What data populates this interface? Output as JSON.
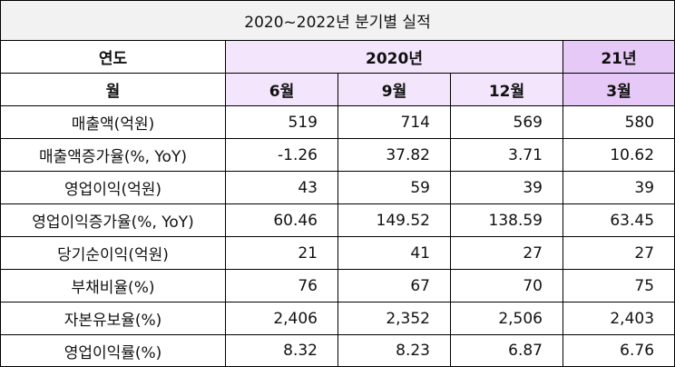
{
  "title": "2020~2022년 분기별 실적",
  "header": {
    "year_label": "연도",
    "month_label": "월",
    "year_2020": "2020년",
    "year_21": "21년",
    "months": [
      "6월",
      "9월",
      "12월",
      "3월"
    ]
  },
  "rows": [
    {
      "label": "매출액(억원)",
      "values": [
        "519",
        "714",
        "569",
        "580"
      ],
      "tones": [
        "neutral",
        "neutral",
        "neutral",
        "neutral"
      ]
    },
    {
      "label": "매출액증가율(%, YoY)",
      "values": [
        "-1.26",
        "37.82",
        "3.71",
        "10.62"
      ],
      "tones": [
        "neg",
        "pos",
        "pos",
        "pos"
      ]
    },
    {
      "label": "영업이익(억원)",
      "values": [
        "43",
        "59",
        "39",
        "39"
      ],
      "tones": [
        "neutral",
        "neutral",
        "neutral",
        "neutral"
      ]
    },
    {
      "label": "영업이익증가율(%, YoY)",
      "values": [
        "60.46",
        "149.52",
        "138.59",
        "63.45"
      ],
      "tones": [
        "pos",
        "pos",
        "pos",
        "pos"
      ]
    },
    {
      "label": "당기순이익(억원)",
      "values": [
        "21",
        "41",
        "27",
        "27"
      ],
      "tones": [
        "neutral",
        "neutral",
        "neutral",
        "neutral"
      ]
    },
    {
      "label": "부채비율(%)",
      "values": [
        "76",
        "67",
        "70",
        "75"
      ],
      "tones": [
        "neutral",
        "neutral",
        "neutral",
        "neutral"
      ]
    },
    {
      "label": "자본유보율(%)",
      "values": [
        "2,406",
        "2,352",
        "2,506",
        "2,403"
      ],
      "tones": [
        "neutral",
        "neutral",
        "neutral",
        "neutral"
      ]
    },
    {
      "label": "영업이익률(%)",
      "values": [
        "8.32",
        "8.23",
        "6.87",
        "6.76"
      ],
      "tones": [
        "pos",
        "pos",
        "pos",
        "pos"
      ]
    }
  ],
  "colors": {
    "header_light": "#f3e5fb",
    "header_strong": "#e7c9f7",
    "negative": "#5b8fd8",
    "positive": "#e53935"
  }
}
